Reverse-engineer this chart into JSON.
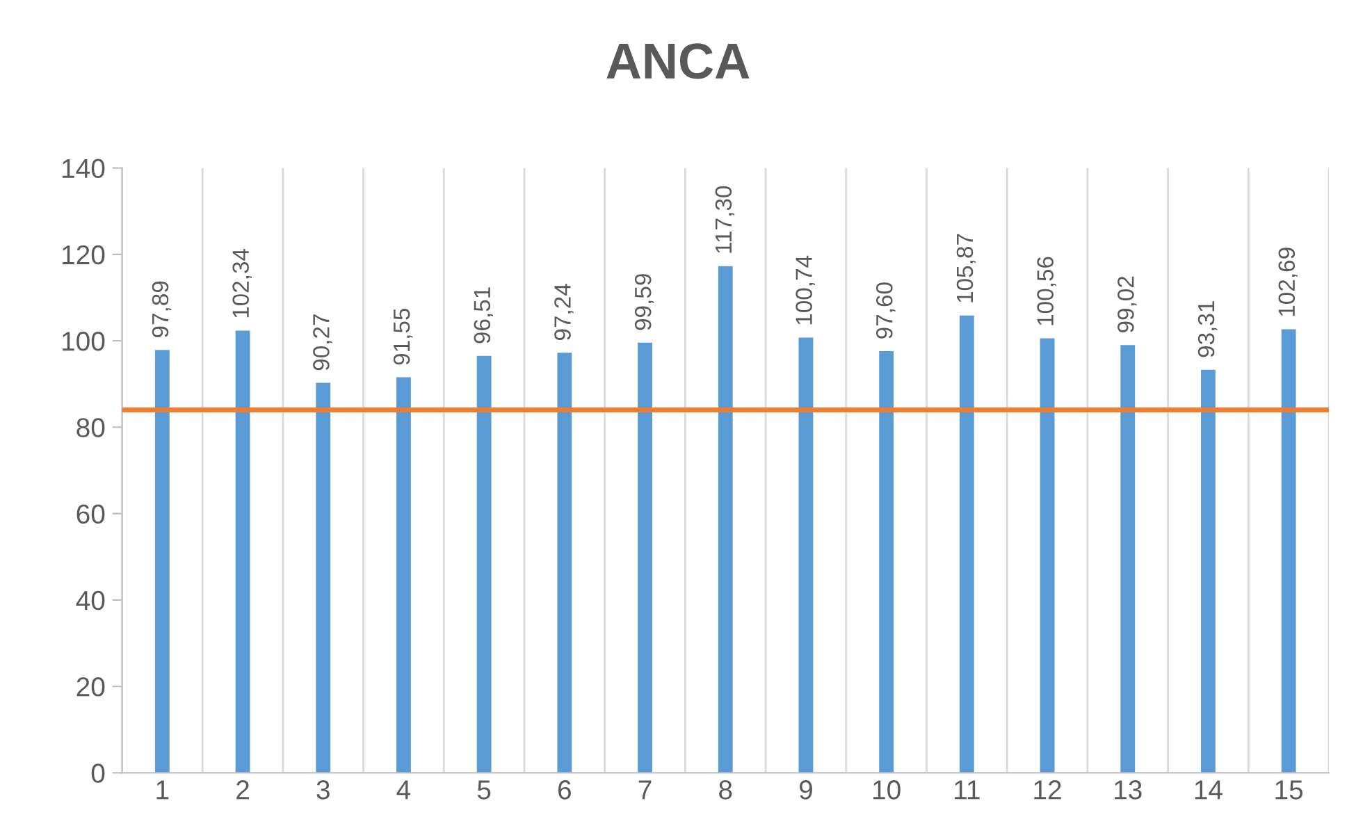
{
  "chart_data": {
    "type": "bar",
    "title": "ANCA",
    "categories": [
      "1",
      "2",
      "3",
      "4",
      "5",
      "6",
      "7",
      "8",
      "9",
      "10",
      "11",
      "12",
      "13",
      "14",
      "15"
    ],
    "values": [
      97.89,
      102.34,
      90.27,
      91.55,
      96.51,
      97.24,
      99.59,
      117.3,
      100.74,
      97.6,
      105.87,
      100.56,
      99.02,
      93.31,
      102.69
    ],
    "value_labels": [
      "97,89",
      "102,34",
      "90,27",
      "91,55",
      "96,51",
      "97,24",
      "99,59",
      "117,30",
      "100,74",
      "97,60",
      "105,87",
      "100,56",
      "99,02",
      "93,31",
      "102,69"
    ],
    "color": "#5b9bd5",
    "ylim": [
      0,
      140
    ],
    "yticks": [
      0,
      20,
      40,
      60,
      80,
      100,
      120,
      140
    ],
    "grid": "x",
    "ref_lines": [
      {
        "axis": "y",
        "value": 84,
        "color": "#ed7d31"
      }
    ]
  }
}
